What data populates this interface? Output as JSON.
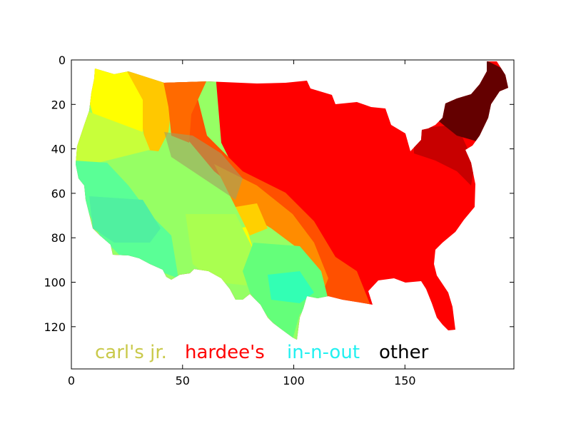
{
  "chart_data": {
    "type": "heatmap",
    "title": "",
    "xlabel": "",
    "ylabel": "",
    "xlim": [
      0,
      199
    ],
    "ylim": [
      139,
      0
    ],
    "x_ticks": [
      0,
      50,
      100,
      150
    ],
    "y_ticks": [
      0,
      20,
      40,
      60,
      80,
      100,
      120
    ],
    "grid": false,
    "legend_position": "bottom-left (drawn inside image)",
    "legend": [
      {
        "label": "carl's jr.",
        "color": "#c9c94a"
      },
      {
        "label": "hardee's",
        "color": "#ff0000"
      },
      {
        "label": "in-n-out",
        "color": "#22f0f0"
      },
      {
        "label": "other",
        "color": "#000000"
      }
    ],
    "regions": [
      {
        "name": "northwest",
        "color": "#ffff00"
      },
      {
        "name": "northern-rockies",
        "color": "#ffc800"
      },
      {
        "name": "montana-east",
        "color": "#ff6a00"
      },
      {
        "name": "pacific-coast",
        "color": "#c8ff3a"
      },
      {
        "name": "california",
        "color": "#5aff96"
      },
      {
        "name": "great-basin",
        "color": "#96ff64"
      },
      {
        "name": "colorado",
        "color": "#ffff00"
      },
      {
        "name": "texas",
        "color": "#64ff7a"
      },
      {
        "name": "texas-gulf",
        "color": "#32ffb4"
      },
      {
        "name": "midwest-and-south",
        "color": "#ff0000"
      },
      {
        "name": "plains-transition",
        "color": "#ff5000"
      },
      {
        "name": "new-york",
        "color": "#c80000"
      },
      {
        "name": "new-england",
        "color": "#640000"
      }
    ]
  }
}
